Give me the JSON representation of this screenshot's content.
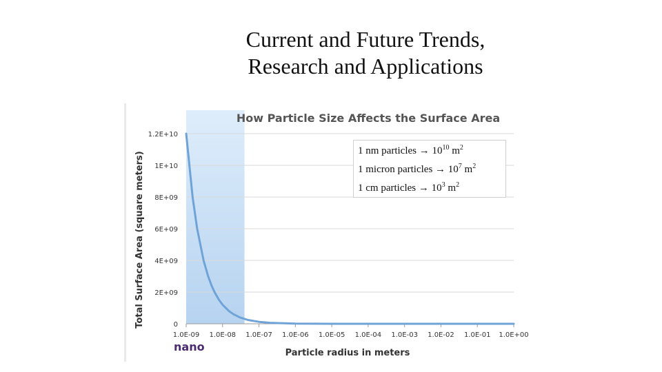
{
  "slide": {
    "title_line1": "Current and Future Trends,",
    "title_line2": "Research and Applications"
  },
  "chart_data": {
    "type": "line",
    "title": "How Particle Size Affects the Surface Area",
    "xlabel": "Particle radius in meters",
    "ylabel": "Total Surface Area (square meters)",
    "x_scale": "log",
    "x_ticks": [
      "1.0E-09",
      "1.0E-08",
      "1.0E-07",
      "1.0E-06",
      "1.0E-05",
      "1.0E-04",
      "1.0E-03",
      "1.0E-02",
      "1.0E-01",
      "1.0E+00"
    ],
    "y_ticks": [
      "0",
      "2E+09",
      "4E+09",
      "6E+09",
      "8E+09",
      "1E+10",
      "1.2E+10"
    ],
    "ylim": [
      0,
      12000000000
    ],
    "grid": true,
    "series": [
      {
        "x": [
          1e-09,
          1.5e-09,
          2e-09,
          3e-09,
          4e-09,
          5e-09,
          6e-09,
          8e-09,
          1e-08,
          1.5e-08,
          2e-08,
          3e-08,
          5e-08,
          1e-07,
          2e-07,
          1e-06,
          1e-05,
          0.0001,
          0.001,
          0.01,
          0.1,
          1
        ],
        "y": [
          12000000000,
          8000000000,
          6000000000,
          4000000000,
          3000000000,
          2400000000,
          2000000000,
          1500000000,
          1200000000,
          800000000,
          600000000,
          400000000,
          240000000,
          120000000,
          60000000,
          12000000,
          1200000,
          120000,
          12000,
          1200,
          120,
          12
        ],
        "color": "#6fa3d7"
      }
    ],
    "highlight_band": {
      "x_start": 1e-09,
      "x_end": 4e-08,
      "label": "nano"
    },
    "annotations": [
      {
        "pre": "1 nm particles ",
        "arrow": "→",
        "base": " 10",
        "exp": "10",
        "unit": " m",
        "unit_exp": "2"
      },
      {
        "pre": "1 micron particles ",
        "arrow": "→",
        "base": " 10",
        "exp": "7",
        "unit": " m",
        "unit_exp": "2"
      },
      {
        "pre": "1 cm particles ",
        "arrow": "→",
        "base": " 10",
        "exp": "3",
        "unit": " m",
        "unit_exp": "2"
      }
    ]
  }
}
